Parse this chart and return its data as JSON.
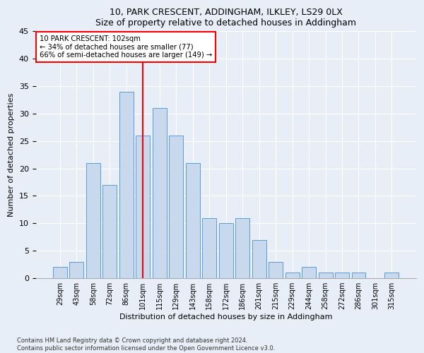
{
  "title1": "10, PARK CRESCENT, ADDINGHAM, ILKLEY, LS29 0LX",
  "title2": "Size of property relative to detached houses in Addingham",
  "xlabel": "Distribution of detached houses by size in Addingham",
  "ylabel": "Number of detached properties",
  "categories": [
    "29sqm",
    "43sqm",
    "58sqm",
    "72sqm",
    "86sqm",
    "101sqm",
    "115sqm",
    "129sqm",
    "143sqm",
    "158sqm",
    "172sqm",
    "186sqm",
    "201sqm",
    "215sqm",
    "229sqm",
    "244sqm",
    "258sqm",
    "272sqm",
    "286sqm",
    "301sqm",
    "315sqm"
  ],
  "values": [
    2,
    3,
    21,
    17,
    34,
    26,
    31,
    26,
    21,
    11,
    10,
    11,
    7,
    3,
    1,
    2,
    1,
    1,
    1,
    0,
    1
  ],
  "bar_color": "#c8d9ee",
  "bar_edge_color": "#5b9bd5",
  "vline_x_index": 5,
  "annotation_text_line1": "10 PARK CRESCENT: 102sqm",
  "annotation_text_line2": "← 34% of detached houses are smaller (77)",
  "annotation_text_line3": "66% of semi-detached houses are larger (149) →",
  "annotation_box_color": "white",
  "annotation_box_edge_color": "red",
  "vline_color": "red",
  "ylim": [
    0,
    45
  ],
  "yticks": [
    0,
    5,
    10,
    15,
    20,
    25,
    30,
    35,
    40,
    45
  ],
  "footer1": "Contains HM Land Registry data © Crown copyright and database right 2024.",
  "footer2": "Contains public sector information licensed under the Open Government Licence v3.0.",
  "bg_color": "#e8eef8",
  "plot_bg_color": "#e8eef8"
}
